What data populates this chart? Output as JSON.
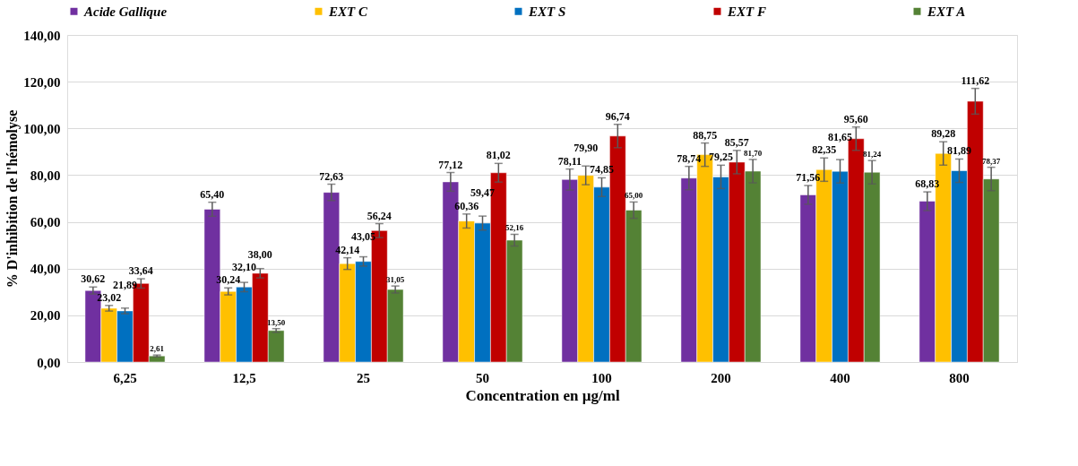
{
  "chart_data": {
    "type": "bar",
    "xlabel": "Concentration en µg/ml",
    "ylabel": "% D'inhibition  de l'hémolyse",
    "categories": [
      "6,25",
      "12,5",
      "25",
      "50",
      "100",
      "200",
      "400",
      "800"
    ],
    "series": [
      {
        "name": "Acide Gallique",
        "color": "#7030a0",
        "values": [
          30.62,
          65.4,
          72.63,
          77.12,
          78.11,
          78.74,
          71.56,
          68.83
        ],
        "errors": [
          1.5,
          3,
          3.5,
          4,
          4.5,
          5,
          4,
          4
        ],
        "value_labels": [
          "30,62",
          "65,40",
          "72,63",
          "77,12",
          "78,11",
          "78,74",
          "71,56",
          "68,83"
        ]
      },
      {
        "name": "EXT C",
        "color": "#ffc000",
        "values": [
          23.02,
          30.24,
          42.14,
          60.36,
          79.9,
          88.75,
          82.35,
          89.28
        ],
        "errors": [
          1.2,
          1.5,
          2.5,
          3,
          4,
          5,
          5,
          5
        ],
        "value_labels": [
          "23,02",
          "30,24",
          "42,14",
          "60,36",
          "79,90",
          "88,75",
          "82,35",
          "89,28"
        ]
      },
      {
        "name": "EXT S",
        "color": "#0070c0",
        "values": [
          21.89,
          32.1,
          43.05,
          59.47,
          74.85,
          79.25,
          81.65,
          81.89
        ],
        "errors": [
          1.2,
          2,
          2,
          3,
          4,
          5,
          5,
          5
        ],
        "value_labels": [
          "21,89",
          "32,10",
          "43,05",
          "59,47",
          "74,85",
          "79,25",
          "81,65",
          "81,89"
        ]
      },
      {
        "name": "EXT F",
        "color": "#c00000",
        "values": [
          33.64,
          38.0,
          56.24,
          81.02,
          96.74,
          85.57,
          95.6,
          111.62
        ],
        "errors": [
          2,
          2,
          3,
          4,
          5,
          5,
          5,
          5.5
        ],
        "value_labels": [
          "33,64",
          "38,00",
          "56,24",
          "81,02",
          "96,74",
          "85,57",
          "95,60",
          "111,62"
        ]
      },
      {
        "name": "EXT A",
        "color": "#548235",
        "values": [
          2.61,
          13.5,
          31.05,
          52.16,
          65.0,
          81.7,
          81.24,
          78.37
        ],
        "errors": [
          0.4,
          0.8,
          1.5,
          2.5,
          3.5,
          5,
          5,
          5
        ],
        "value_labels": [
          "2,61",
          "13,50",
          "31,05",
          "52,16",
          "65,00",
          "81,70",
          "81,24",
          "78,37"
        ]
      }
    ],
    "ylim": [
      0,
      140
    ],
    "yticks": [
      {
        "value": 0,
        "label": "0,00"
      },
      {
        "value": 20,
        "label": "20,00"
      },
      {
        "value": 40,
        "label": "40,00"
      },
      {
        "value": 60,
        "label": "60,00"
      },
      {
        "value": 80,
        "label": "80,00"
      },
      {
        "value": 100,
        "label": "100,00"
      },
      {
        "value": 120,
        "label": "120,00"
      },
      {
        "value": 140,
        "label": "140,00"
      }
    ],
    "grid": "y",
    "legend": "top"
  }
}
